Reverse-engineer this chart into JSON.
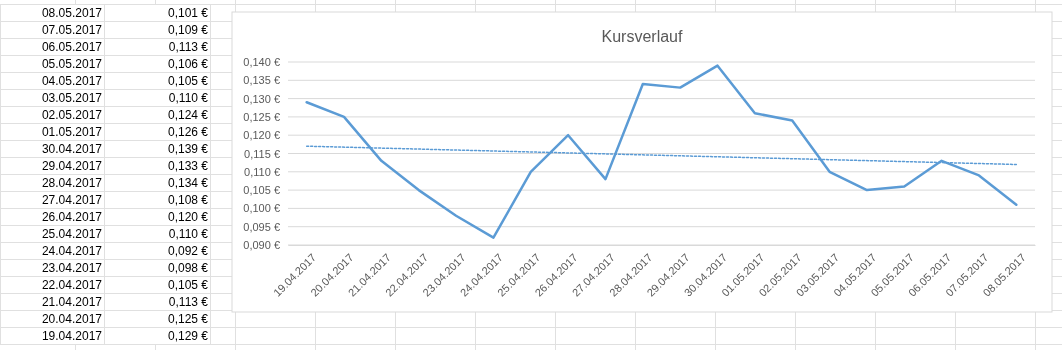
{
  "chart_data": {
    "type": "line",
    "title": "Kursverlauf",
    "categories": [
      "19.04.2017",
      "20.04.2017",
      "21.04.2017",
      "22.04.2017",
      "23.04.2017",
      "24.04.2017",
      "25.04.2017",
      "26.04.2017",
      "27.04.2017",
      "28.04.2017",
      "29.04.2017",
      "30.04.2017",
      "01.05.2017",
      "02.05.2017",
      "03.05.2017",
      "04.05.2017",
      "05.05.2017",
      "06.05.2017",
      "07.05.2017",
      "08.05.2017"
    ],
    "series": [
      {
        "color": "#5b9bd5",
        "values": [
          0.129,
          0.125,
          0.113,
          0.105,
          0.098,
          0.092,
          0.11,
          0.12,
          0.108,
          0.134,
          0.133,
          0.139,
          0.126,
          0.124,
          0.11,
          0.105,
          0.106,
          0.113,
          0.109,
          0.101
        ]
      },
      {
        "type": "line",
        "color": "#5b9bd5",
        "line_style": "dotted",
        "x": [
          "19.04.2017",
          "08.05.2017"
        ],
        "values": [
          0.117,
          0.112
        ]
      }
    ],
    "ylim": [
      0.09,
      0.14
    ],
    "yticks": [
      {
        "value": 0.09,
        "label": "0,090 €"
      },
      {
        "value": 0.095,
        "label": "0,095 €"
      },
      {
        "value": 0.1,
        "label": "0,100 €"
      },
      {
        "value": 0.105,
        "label": "0,105 €"
      },
      {
        "value": 0.11,
        "label": "0,110 €"
      },
      {
        "value": 0.115,
        "label": "0,115 €"
      },
      {
        "value": 0.12,
        "label": "0,120 €"
      },
      {
        "value": 0.125,
        "label": "0,125 €"
      },
      {
        "value": 0.13,
        "label": "0,130 €"
      },
      {
        "value": 0.135,
        "label": "0,135 €"
      },
      {
        "value": 0.14,
        "label": "0,140 €"
      }
    ],
    "annotations": [
      "0,129 €",
      "0,125 €",
      "0,113 €",
      "0,105 €",
      "0,098 €",
      "0,092 €",
      "0,110 €",
      "0,120 €",
      "0,108 €",
      "0,134 €",
      "0,133 €",
      "0,139 €",
      "0,126 €",
      "0,124 €",
      "0,110 €",
      "0,105 €",
      "0,106 €",
      "0,113 €",
      "0,109 €",
      "0,101 €"
    ],
    "grid": "y",
    "marker": "none",
    "line_style": "solid"
  }
}
